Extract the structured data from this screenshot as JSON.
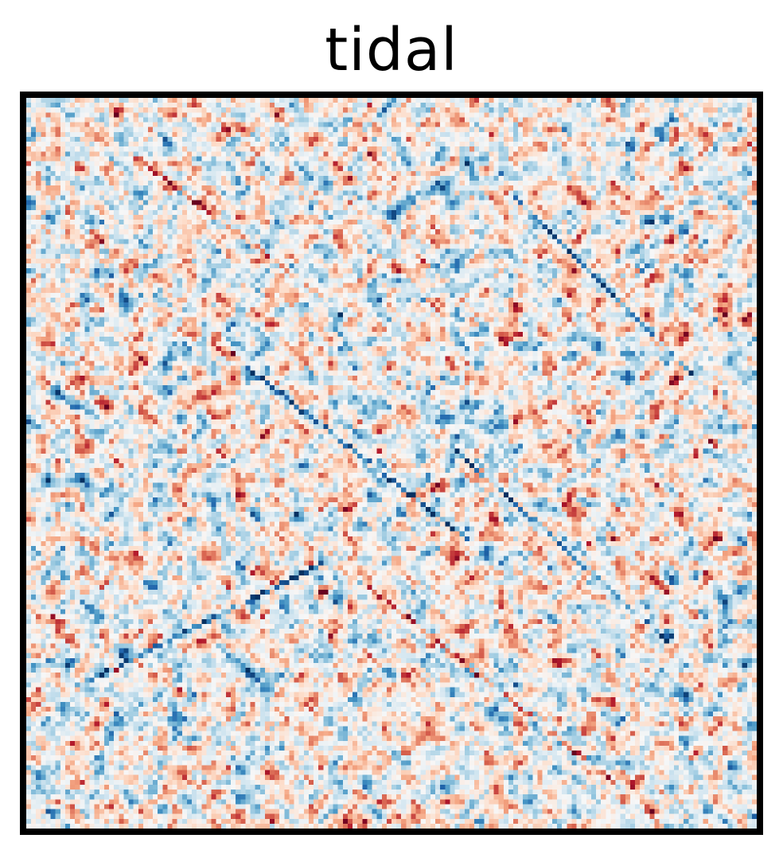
{
  "chart_data": {
    "type": "heatmap",
    "title": "tidal",
    "colormap": "RdBu_r",
    "colormap_stops": [
      "#053061",
      "#2166ac",
      "#4393c3",
      "#92c5de",
      "#d1e5f0",
      "#f7f7f7",
      "#fddbc7",
      "#f4a582",
      "#d6604d",
      "#b2182b",
      "#67001f"
    ],
    "value_range": [
      -1,
      1
    ],
    "grid": false,
    "axes_visible": false,
    "frame_color": "#000000"
  }
}
